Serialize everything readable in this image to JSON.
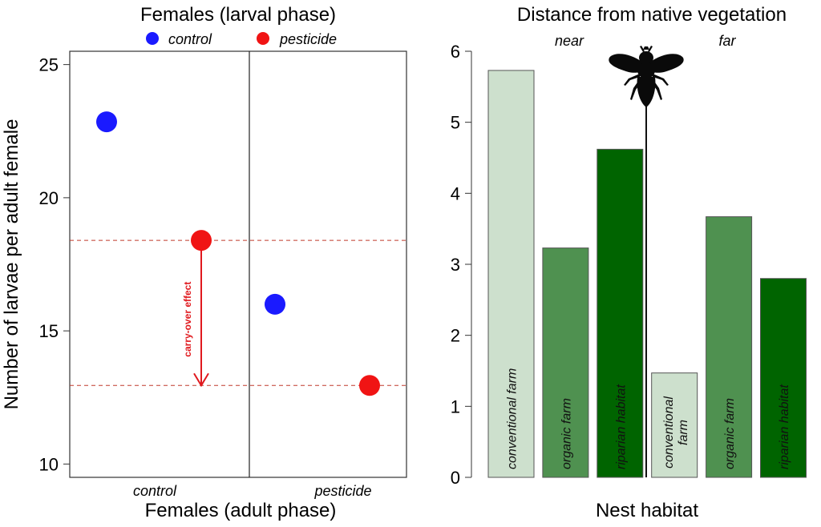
{
  "chart_data": [
    {
      "type": "scatter",
      "title": "Females (larval phase)",
      "xlabel": "Females (adult phase)",
      "ylabel": "Number of larvae per adult female",
      "categories": [
        "control",
        "pesticide"
      ],
      "ylim": [
        9.5,
        25.5
      ],
      "yticks": [
        10,
        15,
        20,
        25
      ],
      "grid": false,
      "legend": {
        "placement": "top",
        "entries": [
          {
            "label": "control",
            "color": "#1a1aff"
          },
          {
            "label": "pesticide",
            "color": "#f01414"
          }
        ]
      },
      "series": [
        {
          "name": "control",
          "color": "#1a1aff",
          "points": [
            {
              "x": "control",
              "y": 22.85
            },
            {
              "x": "pesticide",
              "y": 16.0
            }
          ]
        },
        {
          "name": "pesticide",
          "color": "#f01414",
          "points": [
            {
              "x": "control",
              "y": 18.4
            },
            {
              "x": "pesticide",
              "y": 12.95
            }
          ]
        }
      ],
      "reference_lines": [
        18.4,
        12.95
      ],
      "annotation": {
        "text": "carry-over effect",
        "from": 18.4,
        "to": 12.95,
        "color": "#e0191e"
      }
    },
    {
      "type": "bar",
      "title": "Distance from native vegetation",
      "xlabel": "Nest habitat",
      "ylabel": "",
      "ylim": [
        0,
        6
      ],
      "yticks": [
        0,
        1,
        2,
        3,
        4,
        5,
        6
      ],
      "grid": false,
      "groups": [
        {
          "label": "near",
          "bars": [
            {
              "label": "conventional farm",
              "value": 5.73,
              "color": "#cde0cd"
            },
            {
              "label": "organic farm",
              "value": 3.23,
              "color": "#4f9150"
            },
            {
              "label": "riparian habitat",
              "value": 4.62,
              "color": "#006400"
            }
          ]
        },
        {
          "label": "far",
          "bars": [
            {
              "label": "conventional farm",
              "value": 1.47,
              "color": "#cde0cd"
            },
            {
              "label": "organic farm",
              "value": 3.67,
              "color": "#4f9150"
            },
            {
              "label": "riparian habitat",
              "value": 2.8,
              "color": "#006400"
            }
          ]
        }
      ],
      "icon": "bee-silhouette-icon"
    }
  ]
}
